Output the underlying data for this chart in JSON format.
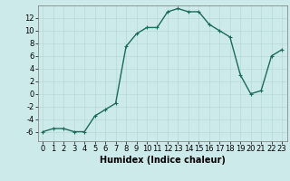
{
  "x": [
    0,
    1,
    2,
    3,
    4,
    5,
    6,
    7,
    8,
    9,
    10,
    11,
    12,
    13,
    14,
    15,
    16,
    17,
    18,
    19,
    20,
    21,
    22,
    23
  ],
  "y": [
    -6,
    -5.5,
    -5.5,
    -6,
    -6,
    -3.5,
    -2.5,
    -1.5,
    7.5,
    9.5,
    10.5,
    10.5,
    13,
    13.5,
    13,
    13,
    11,
    10,
    9,
    3,
    0,
    0.5,
    6,
    7
  ],
  "line_color": "#1a6b5a",
  "bg_color": "#cdeaea",
  "grid_major_color": "#b8d8d8",
  "grid_minor_color": "#c8e4e4",
  "xlabel": "Humidex (Indice chaleur)",
  "xlim": [
    -0.5,
    23.5
  ],
  "ylim": [
    -7.5,
    14
  ],
  "yticks": [
    -6,
    -4,
    -2,
    0,
    2,
    4,
    6,
    8,
    10,
    12
  ],
  "xticks": [
    0,
    1,
    2,
    3,
    4,
    5,
    6,
    7,
    8,
    9,
    10,
    11,
    12,
    13,
    14,
    15,
    16,
    17,
    18,
    19,
    20,
    21,
    22,
    23
  ],
  "label_fontsize": 7,
  "tick_fontsize": 6,
  "marker_size": 3,
  "line_width": 1.0
}
